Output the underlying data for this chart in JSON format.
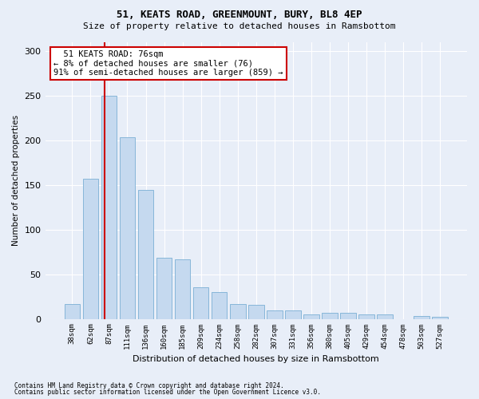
{
  "title": "51, KEATS ROAD, GREENMOUNT, BURY, BL8 4EP",
  "subtitle": "Size of property relative to detached houses in Ramsbottom",
  "xlabel": "Distribution of detached houses by size in Ramsbottom",
  "ylabel": "Number of detached properties",
  "categories": [
    "38sqm",
    "62sqm",
    "87sqm",
    "111sqm",
    "136sqm",
    "160sqm",
    "185sqm",
    "209sqm",
    "234sqm",
    "258sqm",
    "282sqm",
    "307sqm",
    "331sqm",
    "356sqm",
    "380sqm",
    "405sqm",
    "429sqm",
    "454sqm",
    "478sqm",
    "503sqm",
    "527sqm"
  ],
  "values": [
    17,
    157,
    250,
    203,
    144,
    68,
    67,
    35,
    30,
    17,
    16,
    9,
    9,
    5,
    7,
    7,
    5,
    5,
    0,
    3,
    2
  ],
  "bar_color": "#c5d9ef",
  "bar_edge_color": "#7bafd4",
  "vline_x": 1.75,
  "vline_color": "#cc0000",
  "annotation_text": "  51 KEATS ROAD: 76sqm\n← 8% of detached houses are smaller (76)\n91% of semi-detached houses are larger (859) →",
  "annotation_box_color": "#ffffff",
  "annotation_box_edge": "#cc0000",
  "ylim": [
    0,
    310
  ],
  "yticks": [
    0,
    50,
    100,
    150,
    200,
    250,
    300
  ],
  "footer1": "Contains HM Land Registry data © Crown copyright and database right 2024.",
  "footer2": "Contains public sector information licensed under the Open Government Licence v3.0.",
  "bg_color": "#e8eef8",
  "plot_bg_color": "#e8eef8",
  "title_fontsize": 9,
  "subtitle_fontsize": 8
}
